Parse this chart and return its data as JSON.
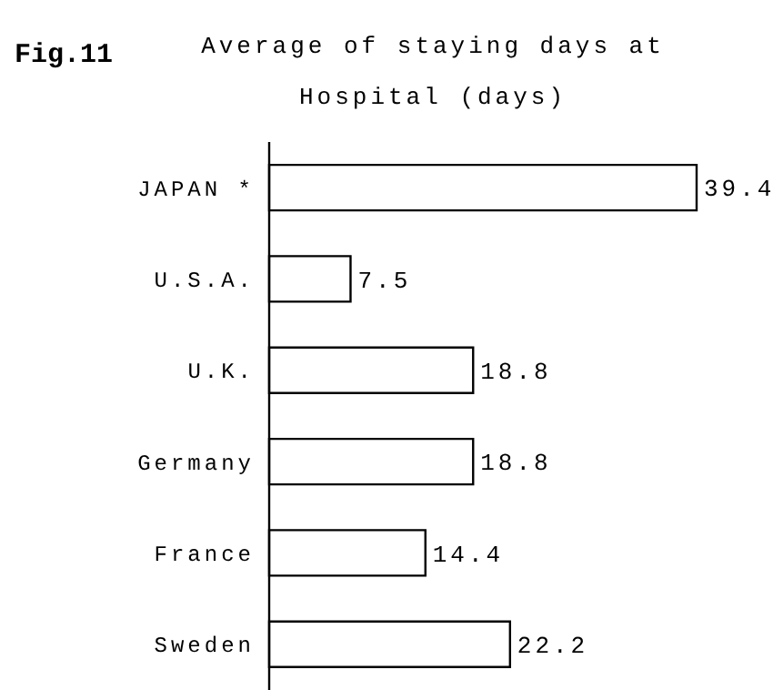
{
  "chart_data": {
    "type": "bar",
    "orientation": "horizontal",
    "title": "Average of staying days at Hospital (days)",
    "annotations": [
      "Fig.11"
    ],
    "categories": [
      "JAPAN *",
      "U.S.A.",
      "U.K.",
      "Germany",
      "France",
      "Sweden"
    ],
    "values": [
      39.4,
      7.5,
      18.8,
      18.8,
      14.4,
      22.2
    ],
    "color": "#ffffff",
    "data_labels": true,
    "grid": false,
    "legend": false
  }
}
